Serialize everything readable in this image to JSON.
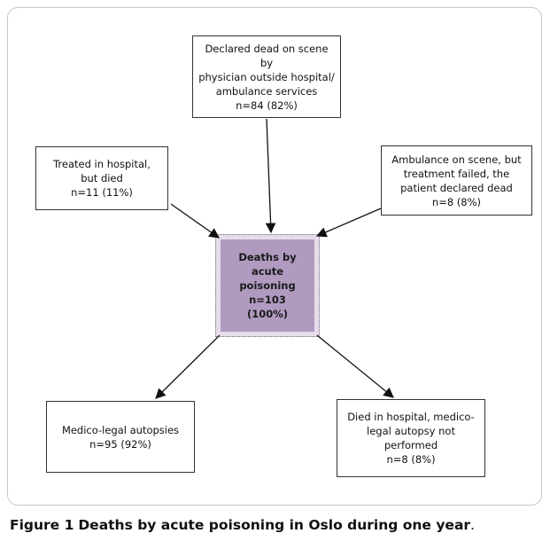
{
  "nodes": {
    "declared_dead": "Declared dead on scene by\nphysician outside hospital/\nambulance services\nn=84 (82%)",
    "treated_hospital": "Treated in hospital,\nbut died\nn=11 (11%)",
    "ambulance": "Ambulance on scene, but\ntreatment failed, the\npatient declared dead\nn=8 (8%)",
    "center": "Deaths by\nacute\npoisoning\nn=103\n(100%)",
    "autopsies": "Medico-legal autopsies\nn=95 (92%)",
    "died_no_autopsy": "Died in hospital, medico-\nlegal autopsy not\nperformed\nn=8 (8%)"
  },
  "caption": {
    "label": "Figure 1",
    "title": "Deaths by acute poisoning in Oslo during one year",
    "period": "."
  }
}
